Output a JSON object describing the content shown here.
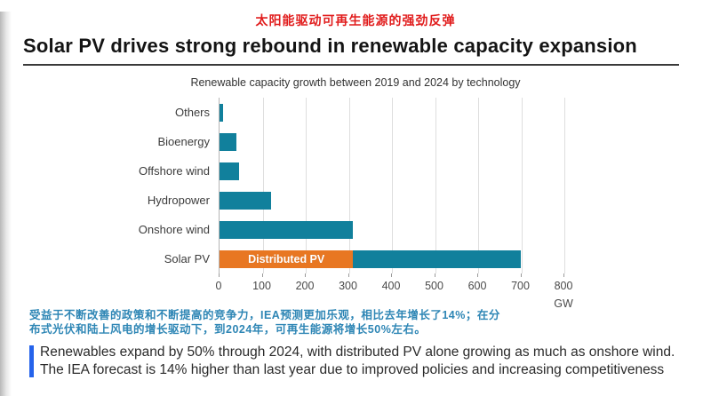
{
  "header": {
    "title_cn": "太阳能驱动可再生能源的强劲反弹",
    "title_en": "Solar PV drives strong rebound in renewable capacity expansion",
    "title_cn_color": "#E11D1D"
  },
  "chart_data": {
    "type": "bar",
    "orientation": "horizontal",
    "title": "Renewable capacity growth between 2019 and 2024 by technology",
    "unit": "GW",
    "xlim": [
      0,
      800
    ],
    "xticks": [
      0,
      100,
      200,
      300,
      400,
      500,
      600,
      700,
      800
    ],
    "grid": true,
    "legend": "none",
    "colors": {
      "bar": "#11809C",
      "distributed": "#E87722"
    },
    "categories": [
      "Others",
      "Bioenergy",
      "Offshore wind",
      "Hydropower",
      "Onshore wind",
      "Solar PV"
    ],
    "values": [
      8,
      40,
      45,
      120,
      310,
      700
    ],
    "rows": [
      {
        "category": "Others",
        "total": 8,
        "segments": [
          {
            "label": "",
            "value": 8,
            "color": "#11809C"
          }
        ]
      },
      {
        "category": "Bioenergy",
        "total": 40,
        "segments": [
          {
            "label": "",
            "value": 40,
            "color": "#11809C"
          }
        ]
      },
      {
        "category": "Offshore wind",
        "total": 45,
        "segments": [
          {
            "label": "",
            "value": 45,
            "color": "#11809C"
          }
        ]
      },
      {
        "category": "Hydropower",
        "total": 120,
        "segments": [
          {
            "label": "",
            "value": 120,
            "color": "#11809C"
          }
        ]
      },
      {
        "category": "Onshore wind",
        "total": 310,
        "segments": [
          {
            "label": "",
            "value": 310,
            "color": "#11809C"
          }
        ]
      },
      {
        "category": "Solar PV",
        "total": 700,
        "segments": [
          {
            "label": "Distributed PV",
            "value": 310,
            "color": "#E87722"
          },
          {
            "label": "",
            "value": 390,
            "color": "#11809C"
          }
        ]
      }
    ]
  },
  "footnote_cn": {
    "color": "#2E86B5",
    "line1": "受益于不断改善的政策和不断提高的竞争力，IEA预测更加乐观，相比去年增长了14%；在分",
    "line2": "布式光伏和陆上风电的增长驱动下，到2024年，可再生能源将增长50%左右。"
  },
  "callout": {
    "accent_color": "#2563EB",
    "line1": "Renewables expand by 50% through 2024, with distributed PV alone growing as much as onshore wind.",
    "line2": "The IEA forecast is 14% higher than last year due to improved policies and increasing competitiveness"
  }
}
